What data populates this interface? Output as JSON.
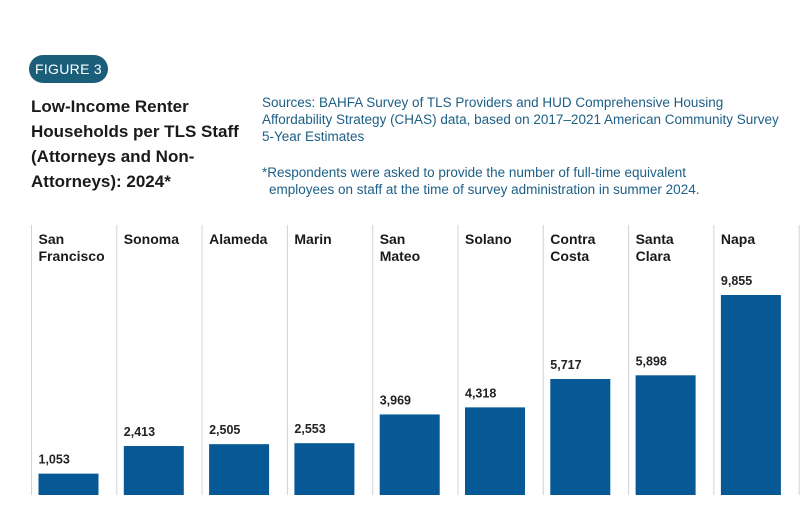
{
  "figure_label": "FIGURE 3",
  "title": "Low-Income Renter Households per TLS Staff (Attorneys and Non-Attorneys): 2024*",
  "sources": "Sources: BAHFA Survey of TLS Providers and HUD Comprehensive Housing Affordability Strategy (CHAS) data, based on 2017–2021 American Community Survey 5-Year Estimates",
  "note_line1": "*Respondents were asked to provide the number of full-time equivalent",
  "note_line2": "employees on staff at the time of survey administration in summer 2024.",
  "colors": {
    "bar": "#065994",
    "badge": "#1b5e7a",
    "text_blue": "#1d5f86",
    "divider": "#d4d4d4"
  },
  "chart_data": {
    "type": "bar",
    "categories": [
      [
        "San",
        "Francisco"
      ],
      [
        "Sonoma"
      ],
      [
        "Alameda"
      ],
      [
        "Marin"
      ],
      [
        "San",
        "Mateo"
      ],
      [
        "Solano"
      ],
      [
        "Contra",
        "Costa"
      ],
      [
        "Santa",
        "Clara"
      ],
      [
        "Napa"
      ]
    ],
    "values": [
      1053,
      2413,
      2505,
      2553,
      3969,
      4318,
      5717,
      5898,
      9855
    ],
    "value_labels": [
      "1,053",
      "2,413",
      "2,505",
      "2,553",
      "3,969",
      "4,318",
      "5,717",
      "5,898",
      "9,855"
    ],
    "ylim": [
      0,
      9855
    ]
  }
}
